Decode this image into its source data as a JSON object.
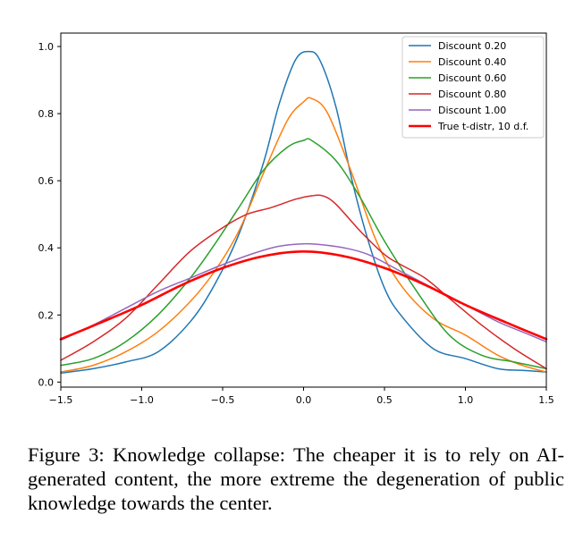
{
  "chart_data": {
    "type": "line",
    "xlim": [
      -1.5,
      1.5
    ],
    "ylim": [
      0.0,
      1.0
    ],
    "x_ticks": [
      -1.5,
      -1.0,
      -0.5,
      0.0,
      0.5,
      1.0,
      1.5
    ],
    "x_tick_labels": [
      "−1.5",
      "−1.0",
      "−0.5",
      "0.0",
      "0.5",
      "1.0",
      "1.5"
    ],
    "y_ticks": [
      0.0,
      0.2,
      0.4,
      0.6,
      0.8,
      1.0
    ],
    "y_tick_labels": [
      "0.0",
      "0.2",
      "0.4",
      "0.6",
      "0.8",
      "1.0"
    ],
    "grid": false,
    "legend_position": "top-right",
    "series": [
      {
        "name": "Discount 0.20",
        "color": "#1f77b4",
        "x": [
          -1.5,
          -1.3,
          -1.1,
          -0.9,
          -0.7,
          -0.55,
          -0.4,
          -0.25,
          -0.15,
          -0.05,
          0.03,
          0.1,
          0.2,
          0.3,
          0.4,
          0.5,
          0.6,
          0.8,
          1.0,
          1.2,
          1.35,
          1.5
        ],
        "y": [
          0.027,
          0.04,
          0.06,
          0.09,
          0.18,
          0.29,
          0.44,
          0.65,
          0.83,
          0.96,
          0.985,
          0.96,
          0.82,
          0.6,
          0.42,
          0.28,
          0.2,
          0.1,
          0.07,
          0.04,
          0.035,
          0.03
        ]
      },
      {
        "name": "Discount 0.40",
        "color": "#ff7f0e",
        "x": [
          -1.5,
          -1.3,
          -1.1,
          -0.9,
          -0.7,
          -0.55,
          -0.4,
          -0.25,
          -0.1,
          0.0,
          0.05,
          0.15,
          0.3,
          0.45,
          0.6,
          0.8,
          1.0,
          1.2,
          1.35,
          1.5
        ],
        "y": [
          0.03,
          0.05,
          0.09,
          0.15,
          0.24,
          0.33,
          0.45,
          0.62,
          0.78,
          0.835,
          0.845,
          0.8,
          0.62,
          0.42,
          0.29,
          0.19,
          0.14,
          0.08,
          0.05,
          0.03
        ]
      },
      {
        "name": "Discount 0.60",
        "color": "#2ca02c",
        "x": [
          -1.5,
          -1.3,
          -1.1,
          -0.9,
          -0.7,
          -0.55,
          -0.4,
          -0.25,
          -0.1,
          0.0,
          0.05,
          0.2,
          0.35,
          0.5,
          0.7,
          0.9,
          1.1,
          1.3,
          1.5
        ],
        "y": [
          0.05,
          0.07,
          0.12,
          0.2,
          0.31,
          0.41,
          0.52,
          0.63,
          0.7,
          0.72,
          0.72,
          0.66,
          0.55,
          0.42,
          0.27,
          0.14,
          0.08,
          0.06,
          0.04
        ]
      },
      {
        "name": "Discount 0.80",
        "color": "#d62728",
        "x": [
          -1.5,
          -1.3,
          -1.1,
          -0.9,
          -0.7,
          -0.5,
          -0.35,
          -0.2,
          -0.05,
          0.05,
          0.12,
          0.2,
          0.35,
          0.5,
          0.6,
          0.75,
          0.9,
          1.1,
          1.3,
          1.5
        ],
        "y": [
          0.065,
          0.12,
          0.19,
          0.29,
          0.39,
          0.46,
          0.5,
          0.52,
          0.545,
          0.555,
          0.555,
          0.53,
          0.45,
          0.38,
          0.35,
          0.31,
          0.25,
          0.17,
          0.1,
          0.04
        ]
      },
      {
        "name": "Discount 1.00",
        "color": "#9467bd",
        "x": [
          -1.5,
          -1.3,
          -1.1,
          -0.9,
          -0.7,
          -0.5,
          -0.3,
          -0.15,
          0.0,
          0.1,
          0.25,
          0.4,
          0.6,
          0.8,
          1.0,
          1.2,
          1.35,
          1.5
        ],
        "y": [
          0.125,
          0.17,
          0.22,
          0.27,
          0.31,
          0.35,
          0.385,
          0.405,
          0.412,
          0.41,
          0.4,
          0.38,
          0.33,
          0.28,
          0.23,
          0.18,
          0.15,
          0.12
        ]
      },
      {
        "name": "True t-distr, 10 d.f.",
        "color": "#ff0000",
        "x": [
          -1.5,
          -1.25,
          -1.0,
          -0.75,
          -0.5,
          -0.25,
          0.0,
          0.25,
          0.5,
          0.75,
          1.0,
          1.25,
          1.5
        ],
        "y": [
          0.128,
          0.178,
          0.23,
          0.29,
          0.34,
          0.375,
          0.389,
          0.375,
          0.34,
          0.29,
          0.23,
          0.178,
          0.128
        ]
      }
    ]
  },
  "caption": "Figure 3: Knowledge collapse: The cheaper it is to rely on AI-generated content, the more extreme the degeneration of public knowledge towards the center."
}
